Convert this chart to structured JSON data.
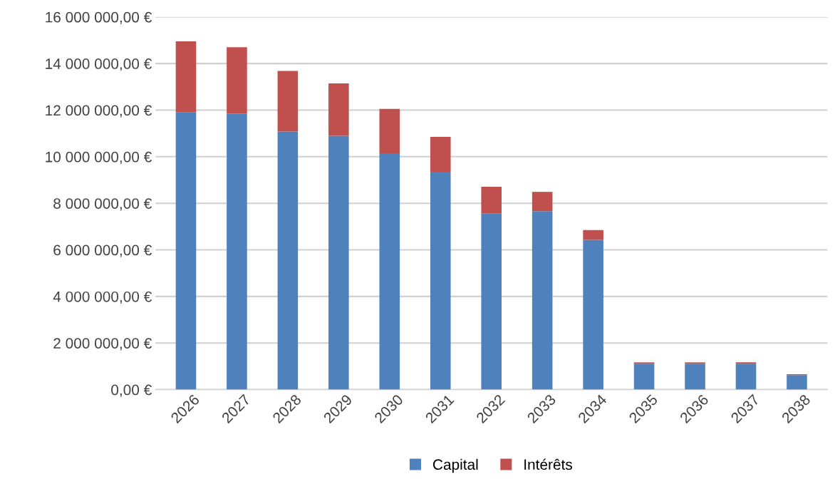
{
  "chart_data": {
    "type": "bar",
    "stacked": true,
    "categories": [
      "2026",
      "2027",
      "2028",
      "2029",
      "2030",
      "2031",
      "2032",
      "2033",
      "2034",
      "2035",
      "2036",
      "2037",
      "2038"
    ],
    "series": [
      {
        "name": "Capital",
        "color": "#4f81bd",
        "values": [
          11900000,
          11850000,
          11080000,
          10900000,
          10150000,
          9350000,
          7570000,
          7660000,
          6430000,
          1110000,
          1110000,
          1110000,
          620000
        ]
      },
      {
        "name": "Intérêts",
        "color": "#c0504d",
        "values": [
          3050000,
          2850000,
          2600000,
          2250000,
          1900000,
          1500000,
          1140000,
          830000,
          420000,
          60000,
          60000,
          60000,
          40000
        ]
      }
    ],
    "ylim": [
      0,
      16000000
    ],
    "yticks": [
      {
        "value": 0,
        "label": "0,00 €"
      },
      {
        "value": 2000000,
        "label": "2 000 000,00 €"
      },
      {
        "value": 4000000,
        "label": "4 000 000,00 €"
      },
      {
        "value": 6000000,
        "label": "6 000 000,00 €"
      },
      {
        "value": 8000000,
        "label": "8 000 000,00 €"
      },
      {
        "value": 10000000,
        "label": "10 000 000,00 €"
      },
      {
        "value": 12000000,
        "label": "12 000 000,00 €"
      },
      {
        "value": 14000000,
        "label": "14 000 000,00 €"
      },
      {
        "value": 16000000,
        "label": "16 000 000,00 €"
      }
    ],
    "grid": "y",
    "legend": "bottom"
  }
}
